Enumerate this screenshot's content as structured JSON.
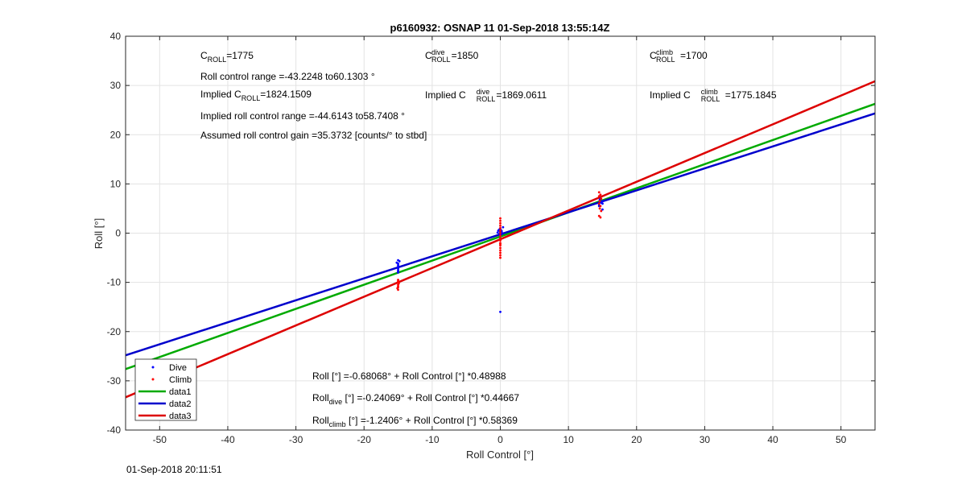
{
  "chart_data": {
    "type": "scatter",
    "title": "p6160932: OSNAP 11 01-Sep-2018 13:55:14Z",
    "xlabel": "Roll Control [°]",
    "ylabel": "Roll [°]",
    "xlim": [
      -55,
      55
    ],
    "ylim": [
      -40,
      40
    ],
    "xticks": [
      -50,
      -40,
      -30,
      -20,
      -10,
      0,
      10,
      20,
      30,
      40,
      50
    ],
    "yticks": [
      -40,
      -30,
      -20,
      -10,
      0,
      10,
      20,
      30,
      40
    ],
    "grid": true,
    "legend_position": "bottom-left",
    "colors": {
      "dive": "#0000ff",
      "climb": "#ff0000",
      "data1": "#00aa00",
      "data2": "#0000cc",
      "data3": "#dd0000"
    },
    "series": [
      {
        "name": "Dive",
        "kind": "points",
        "x": [
          -15,
          -15,
          -15,
          -15,
          -15,
          -15,
          -15,
          -14.8,
          -15.2,
          -15,
          -15,
          -0.3,
          0,
          0.2,
          -0.1,
          0,
          0.1,
          -0.2,
          0,
          0.3,
          0,
          0.4,
          -0.4,
          0.2,
          -0.1,
          0,
          0.1,
          14.5,
          14.8,
          15,
          14.6,
          14.7,
          15,
          14.5,
          14.8,
          14.6,
          15
        ],
        "y": [
          -6.5,
          -6.8,
          -7,
          -7.2,
          -7.5,
          -7.8,
          -5.5,
          -5.7,
          -6,
          -8,
          -6.2,
          0.5,
          0.2,
          -0.2,
          0.8,
          0.3,
          -0.3,
          0.6,
          1,
          0,
          -0.5,
          1.2,
          0.1,
          0.4,
          -0.1,
          -16,
          0.6,
          5.8,
          6.2,
          6.5,
          6.8,
          7,
          6,
          5.5,
          6.3,
          6.6,
          4.8
        ]
      },
      {
        "name": "Climb",
        "kind": "points",
        "x": [
          -15,
          -15,
          -15,
          -15,
          -15,
          -15,
          -15,
          -14.9,
          -15.1,
          0,
          0,
          0,
          0,
          0,
          0,
          0,
          0,
          0,
          0,
          0,
          0,
          0,
          0,
          0,
          0,
          0,
          0,
          0,
          14.5,
          14.7,
          14.5,
          14.8,
          14.6,
          14.5,
          14.7,
          14.6,
          14.8,
          14.5,
          14.7
        ],
        "y": [
          -9.5,
          -10,
          -10.5,
          -11,
          -11.5,
          -9.8,
          -10.8,
          -10.2,
          -11.2,
          3,
          2.5,
          2,
          1.5,
          1,
          0.5,
          0,
          -0.5,
          -1,
          -1.5,
          -2,
          -2.5,
          -3,
          -3.5,
          -4,
          -4.5,
          -5,
          -2.2,
          -1.2,
          8.3,
          7.8,
          7.5,
          7,
          6.5,
          6,
          5.5,
          5,
          4.5,
          3.5,
          3.2
        ]
      },
      {
        "name": "data1",
        "kind": "line",
        "intercept": -0.68068,
        "slope": 0.48988
      },
      {
        "name": "data2",
        "kind": "line",
        "intercept": -0.24069,
        "slope": 0.44667
      },
      {
        "name": "data3",
        "kind": "line",
        "intercept": -1.2406,
        "slope": 0.58369
      }
    ],
    "annotations": {
      "c_roll": {
        "label": "C",
        "sub": "ROLL",
        "value": "=1775"
      },
      "range": "Roll control range =-43.2248 to60.1303 °",
      "implied_c_roll": {
        "prefix": "Implied C",
        "sub": "ROLL",
        "value": "=1824.1509"
      },
      "implied_range": "Implied roll control range =-44.6143 to58.7408 °",
      "gain": "Assumed roll control gain =35.3732 [counts/° to stbd]",
      "c_dive": {
        "label": "C",
        "sup": "dive",
        "sub": "ROLL",
        "value": "=1850"
      },
      "implied_c_dive": {
        "prefix": "Implied C",
        "sup": "dive",
        "sub": "ROLL",
        "value": "=1869.0611"
      },
      "c_climb": {
        "label": "C",
        "sup": "climb",
        "sub": "ROLL",
        "value": "=1700"
      },
      "implied_c_climb": {
        "prefix": "Implied C",
        "sup": "climb",
        "sub": "ROLL",
        "value": "=1775.1845"
      },
      "fit_all": "Roll [°] =-0.68068° + Roll Control [°] *0.48988",
      "fit_dive": {
        "prefix": "Roll",
        "sub": "dive",
        "rest": " [°] =-0.24069° + Roll Control [°] *0.44667"
      },
      "fit_climb": {
        "prefix": "Roll",
        "sub": "climb",
        "rest": " [°] =-1.2406° + Roll Control [°] *0.58369"
      }
    }
  },
  "timestamp": "01-Sep-2018 20:11:51"
}
